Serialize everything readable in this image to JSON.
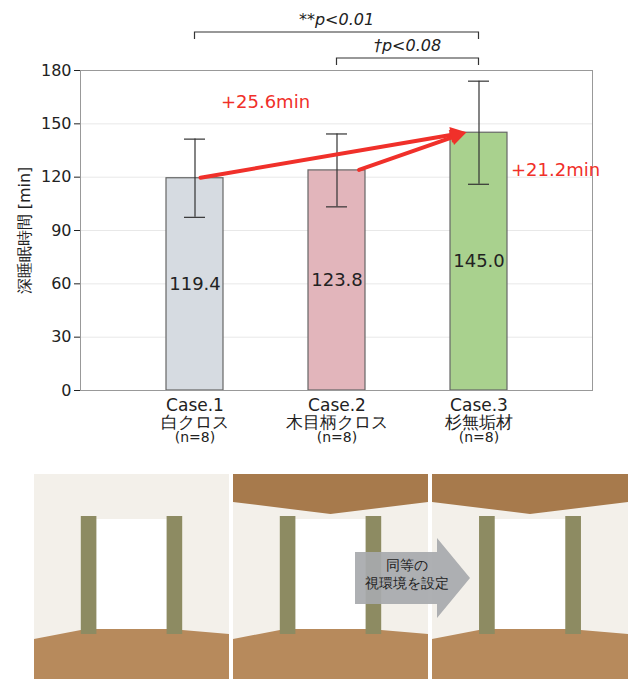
{
  "chart_data": {
    "type": "bar",
    "y_label": "深睡眠時間 [min]",
    "categories": [
      "Case.1",
      "Case.2",
      "Case.3"
    ],
    "category_names": [
      "白クロス",
      "木目柄クロス",
      "杉無垢材"
    ],
    "n_labels": [
      "(n=8)",
      "(n=8)",
      "(n=8)"
    ],
    "values": [
      119.4,
      123.8,
      145.0
    ],
    "value_labels": [
      "119.4",
      "123.8",
      "145.0"
    ],
    "errors": [
      22,
      20.5,
      29
    ],
    "colors": [
      "#d6dbe1",
      "#e2b5bb",
      "#a9d18e"
    ],
    "ylim": [
      0,
      180
    ],
    "yticks": [
      0,
      30,
      60,
      90,
      120,
      150,
      180
    ],
    "grid": true,
    "data_labels": true,
    "annotations": [
      {
        "text": "+25.6min",
        "from": "Case.1",
        "to": "Case.3"
      },
      {
        "text": "+21.2min",
        "from": "Case.2",
        "to": "Case.3"
      }
    ],
    "significance": [
      {
        "text": "**p<0.01",
        "from": "Case.1",
        "to": "Case.3"
      },
      {
        "text": "†p<0.08",
        "from": "Case.2",
        "to": "Case.3"
      }
    ],
    "photo_note": [
      "同等の",
      "視環境を設定"
    ]
  }
}
